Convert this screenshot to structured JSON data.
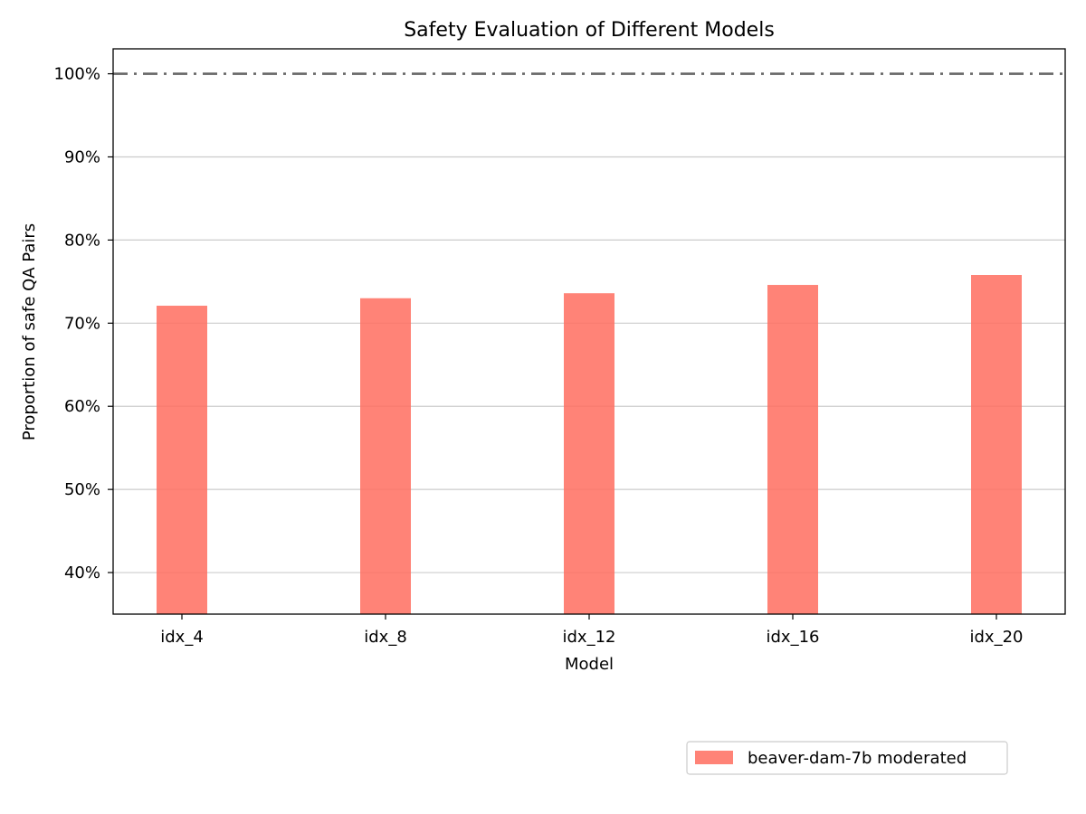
{
  "chart_data": {
    "type": "bar",
    "title": "Safety Evaluation of Different Models",
    "xlabel": "Model",
    "ylabel": "Proportion of safe QA Pairs",
    "categories": [
      "idx_4",
      "idx_8",
      "idx_12",
      "idx_16",
      "idx_20"
    ],
    "series": [
      {
        "name": "beaver-dam-7b moderated",
        "values": [
          72.1,
          73.0,
          73.6,
          74.6,
          75.8
        ],
        "color": "#ff6d5f"
      }
    ],
    "ylim": [
      35,
      103
    ],
    "y_ticks": [
      40,
      50,
      60,
      70,
      80,
      90,
      100
    ],
    "y_tick_labels": [
      "40%",
      "50%",
      "60%",
      "70%",
      "80%",
      "90%",
      "100%"
    ],
    "reference_line": {
      "value": 100,
      "style": "dash-dot",
      "color": "#666666"
    },
    "grid": "y",
    "legend_position": "below-right"
  }
}
